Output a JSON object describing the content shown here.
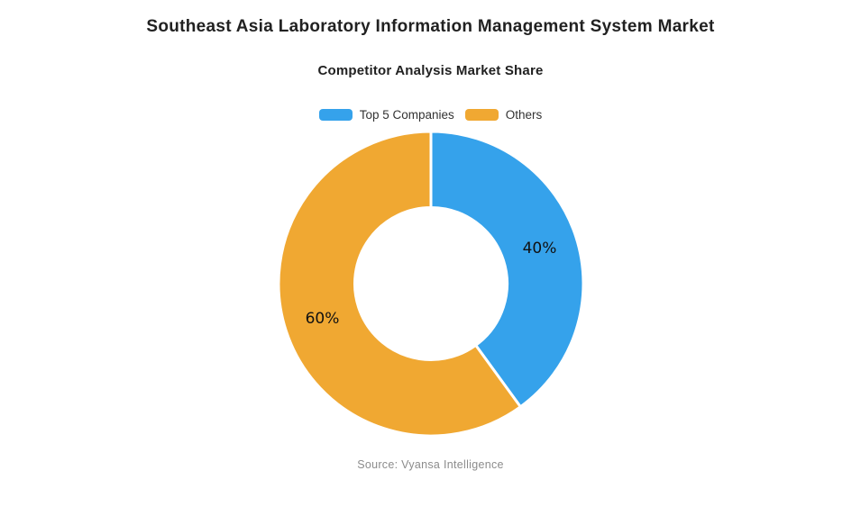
{
  "page": {
    "title": "Southeast Asia Laboratory Information Management System Market",
    "subtitle": "Competitor Analysis Market Share",
    "source": "Source: Vyansa Intelligence"
  },
  "chart_data": {
    "type": "pie",
    "variant": "donut",
    "title": "Competitor Analysis Market Share",
    "categories": [
      "Top 5 Companies",
      "Others"
    ],
    "values": [
      40,
      60
    ],
    "value_labels": [
      "40%",
      "60%"
    ],
    "colors": [
      "#35A2EB",
      "#F0A832"
    ],
    "slice_border_color": "#ffffff",
    "slice_border_width": 3,
    "start_angle_deg": 0,
    "clockwise": true,
    "inner_radius_ratio": 0.5,
    "label_radius_ratio": 0.75,
    "legend_position": "top"
  }
}
